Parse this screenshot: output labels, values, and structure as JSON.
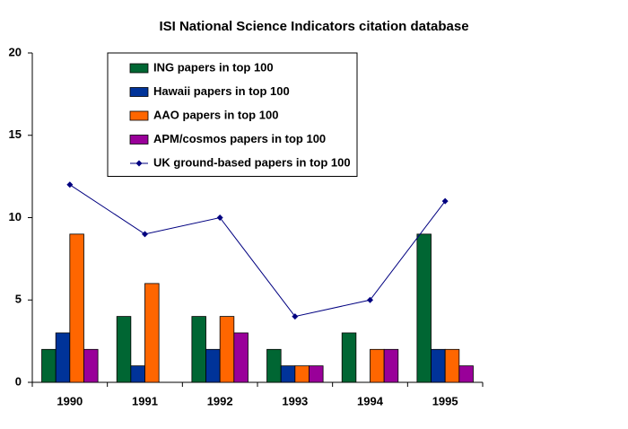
{
  "chart_data": {
    "type": "bar",
    "title": "ISI National Science Indicators citation database",
    "categories": [
      "1990",
      "1991",
      "1992",
      "1993",
      "1994",
      "1995"
    ],
    "series": [
      {
        "name": "ING papers in top 100",
        "color": "#006633",
        "values": [
          2,
          4,
          4,
          2,
          3,
          9
        ]
      },
      {
        "name": "Hawaii papers in top 100",
        "color": "#003399",
        "values": [
          3,
          1,
          2,
          1,
          0,
          2
        ]
      },
      {
        "name": "AAO papers in top 100",
        "color": "#ff6600",
        "values": [
          9,
          6,
          4,
          1,
          2,
          2
        ]
      },
      {
        "name": "APM/cosmos papers in top 100",
        "color": "#990099",
        "values": [
          2,
          0,
          3,
          1,
          2,
          1
        ]
      },
      {
        "name": "UK ground-based papers in top 100",
        "color": "#000080",
        "type": "line",
        "values": [
          12,
          9,
          10,
          4,
          5,
          11
        ]
      }
    ],
    "ylim": [
      0,
      20
    ],
    "yticks": [
      0,
      5,
      10,
      15,
      20
    ],
    "grid": false,
    "legend": "top"
  }
}
